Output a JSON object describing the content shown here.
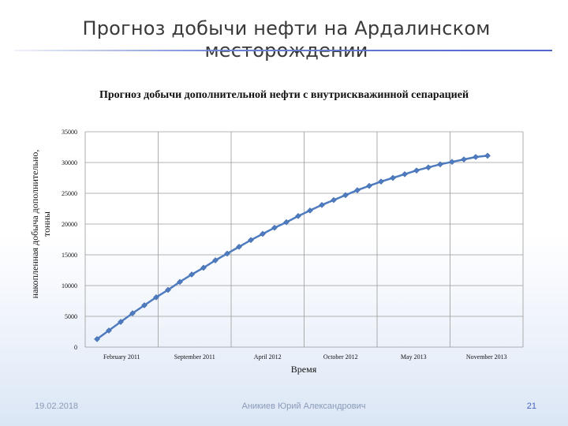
{
  "slide": {
    "title": "Прогноз добычи нефти на Ардалинском месторождении",
    "footer_date": "19.02.2018",
    "footer_author": "Аникиев Юрий Александрович",
    "page_number": "21"
  },
  "colors": {
    "series": "#4f7cc0",
    "grid": "#9a9a9a",
    "title_rule": "#5a72cf"
  },
  "chart_data": {
    "type": "line",
    "title": "Прогноз добычи дополнительной нефти с внутрискважинной сепарацией",
    "xlabel": "Время",
    "ylabel": "накопленная добыча дополнительно, тонны",
    "ylim": [
      0,
      35000
    ],
    "yticks": [
      "0",
      "5000",
      "10000",
      "15000",
      "20000",
      "25000",
      "30000",
      "35000"
    ],
    "xticks": [
      "February 2011",
      "September 2011",
      "April 2012",
      "October 2012",
      "May 2013",
      "November 2013"
    ],
    "grid": true,
    "legend": "none",
    "series": [
      {
        "name": "",
        "x": [
          "2011-02",
          "2011-03",
          "2011-04",
          "2011-05",
          "2011-06",
          "2011-07",
          "2011-08",
          "2011-09",
          "2011-10",
          "2011-11",
          "2011-12",
          "2012-01",
          "2012-02",
          "2012-03",
          "2012-04",
          "2012-05",
          "2012-06",
          "2012-07",
          "2012-08",
          "2012-09",
          "2012-10",
          "2012-11",
          "2012-12",
          "2013-01",
          "2013-02",
          "2013-03",
          "2013-04",
          "2013-05",
          "2013-06",
          "2013-07",
          "2013-08",
          "2013-09",
          "2013-10",
          "2013-11"
        ],
        "values": [
          1300,
          2700,
          4100,
          5500,
          6800,
          8100,
          9300,
          10600,
          11800,
          12900,
          14100,
          15200,
          16300,
          17400,
          18400,
          19400,
          20300,
          21300,
          22200,
          23100,
          23900,
          24700,
          25500,
          26200,
          26900,
          27500,
          28100,
          28700,
          29200,
          29700,
          30100,
          30500,
          30900,
          31100
        ]
      }
    ]
  }
}
